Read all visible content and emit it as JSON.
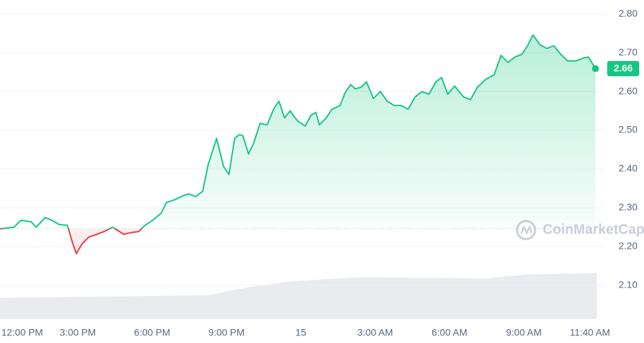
{
  "chart_data": {
    "type": "line",
    "color": "#16c784",
    "down_color": "#ea3943",
    "grid": true,
    "watermark": "CoinMarketCap",
    "baseline": 2.246,
    "xlim": [
      -0.14,
      23.89
    ],
    "ylim": [
      2.014,
      2.836
    ],
    "xticks": [
      {
        "value": 0,
        "label": "12:00 PM"
      },
      {
        "value": 3,
        "label": "3:00 PM"
      },
      {
        "value": 6,
        "label": "6:00 PM"
      },
      {
        "value": 9,
        "label": "9:00 PM"
      },
      {
        "value": 12,
        "label": "15"
      },
      {
        "value": 15,
        "label": "3:00 AM"
      },
      {
        "value": 18,
        "label": "6:00 AM"
      },
      {
        "value": 21,
        "label": "9:00 AM"
      },
      {
        "value": 23.67,
        "label": "11:40 AM"
      }
    ],
    "yticks": [
      {
        "value": 2.1,
        "label": "2.10"
      },
      {
        "value": 2.2,
        "label": "2.20"
      },
      {
        "value": 2.3,
        "label": "2.30"
      },
      {
        "value": 2.4,
        "label": "2.40"
      },
      {
        "value": 2.5,
        "label": "2.50"
      },
      {
        "value": 2.6,
        "label": "2.60"
      },
      {
        "value": 2.7,
        "label": "2.70"
      },
      {
        "value": 2.8,
        "label": "2.80"
      }
    ],
    "x": [
      -0.14,
      0.42,
      0.7,
      1.12,
      1.32,
      1.68,
      1.96,
      2.24,
      2.58,
      2.8,
      2.94,
      3.17,
      3.45,
      3.78,
      4.06,
      4.4,
      4.85,
      5.13,
      5.46,
      5.69,
      6.02,
      6.36,
      6.58,
      6.92,
      7.28,
      7.48,
      7.76,
      8.04,
      8.26,
      8.6,
      8.88,
      9.1,
      9.33,
      9.52,
      9.66,
      9.89,
      10.08,
      10.36,
      10.64,
      10.92,
      11.12,
      11.34,
      11.57,
      11.85,
      12.18,
      12.41,
      12.61,
      12.75,
      13.03,
      13.25,
      13.59,
      13.78,
      14.01,
      14.2,
      14.43,
      14.65,
      14.93,
      15.21,
      15.49,
      15.77,
      16.05,
      16.33,
      16.61,
      16.89,
      17.17,
      17.45,
      17.68,
      17.93,
      18.21,
      18.57,
      18.85,
      19.13,
      19.47,
      19.8,
      20.08,
      20.36,
      20.64,
      20.92,
      21.15,
      21.37,
      21.65,
      21.93,
      22.21,
      22.49,
      22.77,
      23.11,
      23.39,
      23.61,
      23.89
    ],
    "values": [
      2.246,
      2.25,
      2.268,
      2.264,
      2.25,
      2.275,
      2.268,
      2.257,
      2.255,
      2.207,
      2.182,
      2.207,
      2.225,
      2.232,
      2.239,
      2.25,
      2.232,
      2.236,
      2.239,
      2.254,
      2.268,
      2.286,
      2.314,
      2.321,
      2.332,
      2.336,
      2.329,
      2.343,
      2.411,
      2.479,
      2.407,
      2.386,
      2.479,
      2.489,
      2.486,
      2.439,
      2.464,
      2.518,
      2.514,
      2.557,
      2.575,
      2.532,
      2.55,
      2.525,
      2.511,
      2.539,
      2.546,
      2.514,
      2.532,
      2.554,
      2.564,
      2.596,
      2.618,
      2.607,
      2.611,
      2.625,
      2.582,
      2.6,
      2.575,
      2.564,
      2.564,
      2.554,
      2.586,
      2.6,
      2.593,
      2.625,
      2.636,
      2.593,
      2.614,
      2.586,
      2.579,
      2.611,
      2.632,
      2.643,
      2.693,
      2.675,
      2.689,
      2.696,
      2.718,
      2.746,
      2.721,
      2.711,
      2.718,
      2.696,
      2.679,
      2.679,
      2.686,
      2.689,
      2.659
    ],
    "last_price_label": "2.66"
  }
}
